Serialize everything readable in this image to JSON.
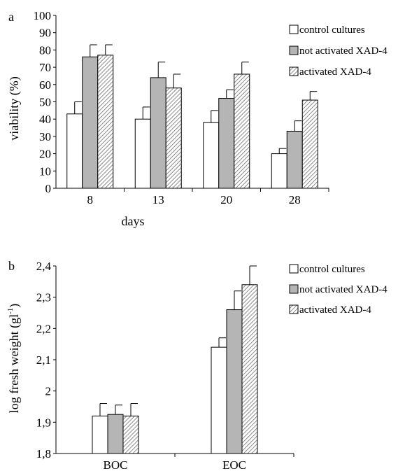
{
  "chart_data": [
    {
      "panel": "a",
      "type": "bar",
      "xlabel": "days",
      "ylabel": "viability (%)",
      "ylim": [
        0,
        100
      ],
      "ystep": 10,
      "categories": [
        "8",
        "13",
        "20",
        "28"
      ],
      "ytick_labels": [
        "0",
        "10",
        "20",
        "30",
        "40",
        "50",
        "60",
        "70",
        "80",
        "90",
        "100"
      ],
      "legend_position": "top-right",
      "series": [
        {
          "name": "control cultures",
          "style": "white",
          "values": [
            43,
            40,
            38,
            20
          ],
          "errors": [
            7,
            7,
            7,
            3
          ]
        },
        {
          "name": "not activated XAD-4",
          "style": "gray",
          "values": [
            76,
            64,
            52,
            33
          ],
          "errors": [
            7,
            9,
            5,
            6
          ]
        },
        {
          "name": "activated XAD-4",
          "style": "hatched",
          "values": [
            77,
            58,
            66,
            51
          ],
          "errors": [
            6,
            8,
            7,
            5
          ]
        }
      ]
    },
    {
      "panel": "b",
      "type": "bar",
      "xlabel": "",
      "ylabel": "log fresh weight (gl",
      "ylabel_sup": "-1",
      "ylabel_close": ")",
      "ylim": [
        1.8,
        2.4
      ],
      "ystep": 0.1,
      "categories": [
        "BOC",
        "EOC"
      ],
      "ytick_labels": [
        "1,8",
        "1,9",
        "2",
        "2,1",
        "2,2",
        "2,3",
        "2,4"
      ],
      "legend_position": "top-right",
      "series": [
        {
          "name": "control cultures",
          "style": "white",
          "values": [
            1.92,
            2.14
          ],
          "errors": [
            0.04,
            0.03
          ]
        },
        {
          "name": "not activated XAD-4",
          "style": "gray",
          "values": [
            1.925,
            2.26
          ],
          "errors": [
            0.03,
            0.06
          ]
        },
        {
          "name": "activated XAD-4",
          "style": "hatched",
          "values": [
            1.92,
            2.34
          ],
          "errors": [
            0.04,
            0.06
          ]
        }
      ]
    }
  ],
  "colors": {
    "white": "#ffffff",
    "gray": "#b5b5b5",
    "hatch": "#6e6e6e",
    "axis": "#000000"
  }
}
